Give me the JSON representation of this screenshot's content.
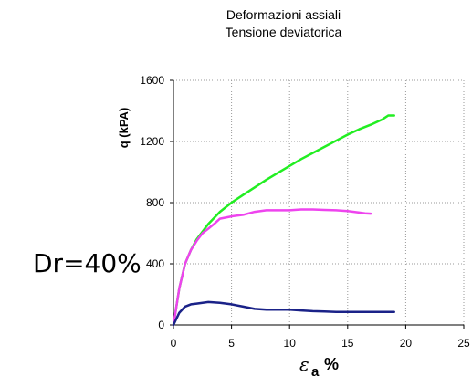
{
  "header": {
    "title_line1": "Deformazioni assiali",
    "title_line2": "Tensione deviatorica"
  },
  "annotation": "Dr=40%",
  "chart_data": {
    "type": "line",
    "title": "Deformazioni assiali\nTensione deviatorica",
    "ylabel": "q (kPA)",
    "xlabel_symbol": "ε",
    "xlabel_subscript": "a",
    "xlabel_unit": "%",
    "xlim": [
      0,
      25
    ],
    "ylim": [
      0,
      1600
    ],
    "xticks": [
      0,
      5,
      10,
      15,
      20,
      25
    ],
    "yticks": [
      0,
      400,
      800,
      1200,
      1600
    ],
    "grid": true,
    "series": [
      {
        "color": "#22ee22",
        "x": [
          0,
          0.5,
          1,
          1.5,
          2,
          2.5,
          3,
          4,
          5,
          6,
          7,
          8,
          9,
          10,
          11,
          12,
          13,
          14,
          15,
          16,
          17,
          18,
          18.5,
          19
        ],
        "y": [
          0,
          240,
          400,
          490,
          560,
          610,
          660,
          740,
          800,
          850,
          900,
          950,
          995,
          1040,
          1085,
          1125,
          1165,
          1205,
          1245,
          1280,
          1310,
          1345,
          1370,
          1370
        ]
      },
      {
        "color": "#ee44ee",
        "x": [
          0,
          0.5,
          1,
          1.5,
          2,
          2.5,
          3,
          3.5,
          4,
          5,
          6,
          7,
          8,
          9,
          10,
          11,
          12,
          13,
          14,
          15,
          16,
          16.5,
          17
        ],
        "y": [
          0,
          240,
          400,
          490,
          550,
          600,
          630,
          660,
          695,
          710,
          720,
          740,
          750,
          750,
          750,
          755,
          755,
          752,
          750,
          745,
          735,
          730,
          728
        ]
      },
      {
        "color": "#1a2288",
        "x": [
          0,
          0.5,
          1,
          1.5,
          2,
          2.5,
          3,
          4,
          5,
          6,
          7,
          8,
          9,
          10,
          11,
          12,
          13,
          14,
          15,
          16,
          17,
          18,
          19
        ],
        "y": [
          0,
          80,
          120,
          135,
          140,
          145,
          150,
          145,
          135,
          120,
          105,
          100,
          100,
          100,
          95,
          90,
          88,
          85,
          85,
          85,
          85,
          85,
          85
        ]
      }
    ]
  }
}
